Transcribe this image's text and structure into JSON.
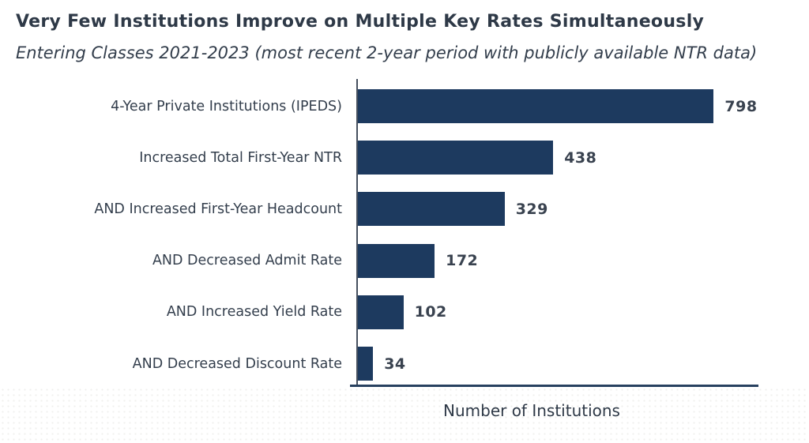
{
  "header": {
    "title": "Very Few Institutions Improve on Multiple Key Rates Simultaneously",
    "subtitle": "Entering Classes 2021-2023 (most recent 2-year period with publicly available NTR data)"
  },
  "chart_data": {
    "type": "bar",
    "orientation": "horizontal",
    "title": "Very Few Institutions Improve on Multiple Key Rates Simultaneously",
    "subtitle": "Entering Classes 2021-2023 (most recent 2-year period with publicly available NTR data)",
    "categories": [
      "4-Year Private Institutions (IPEDS)",
      "Increased Total First-Year NTR",
      "AND Increased First-Year Headcount",
      "AND Decreased Admit Rate",
      "AND Increased Yield Rate",
      "AND Decreased Discount Rate"
    ],
    "values": [
      798,
      438,
      329,
      172,
      102,
      34
    ],
    "xlabel": "Number of Institutions",
    "ylabel": "",
    "xlim": [
      0,
      900
    ],
    "grid": false,
    "legend": false,
    "value_labels": true
  },
  "colors": {
    "bar": "#1d3a5f",
    "text": "#333e4c",
    "title": "#2e3947",
    "value": "#39424f",
    "axis_v": "#46505e",
    "axis_h": "#27405f",
    "bg": "#ffffff"
  }
}
